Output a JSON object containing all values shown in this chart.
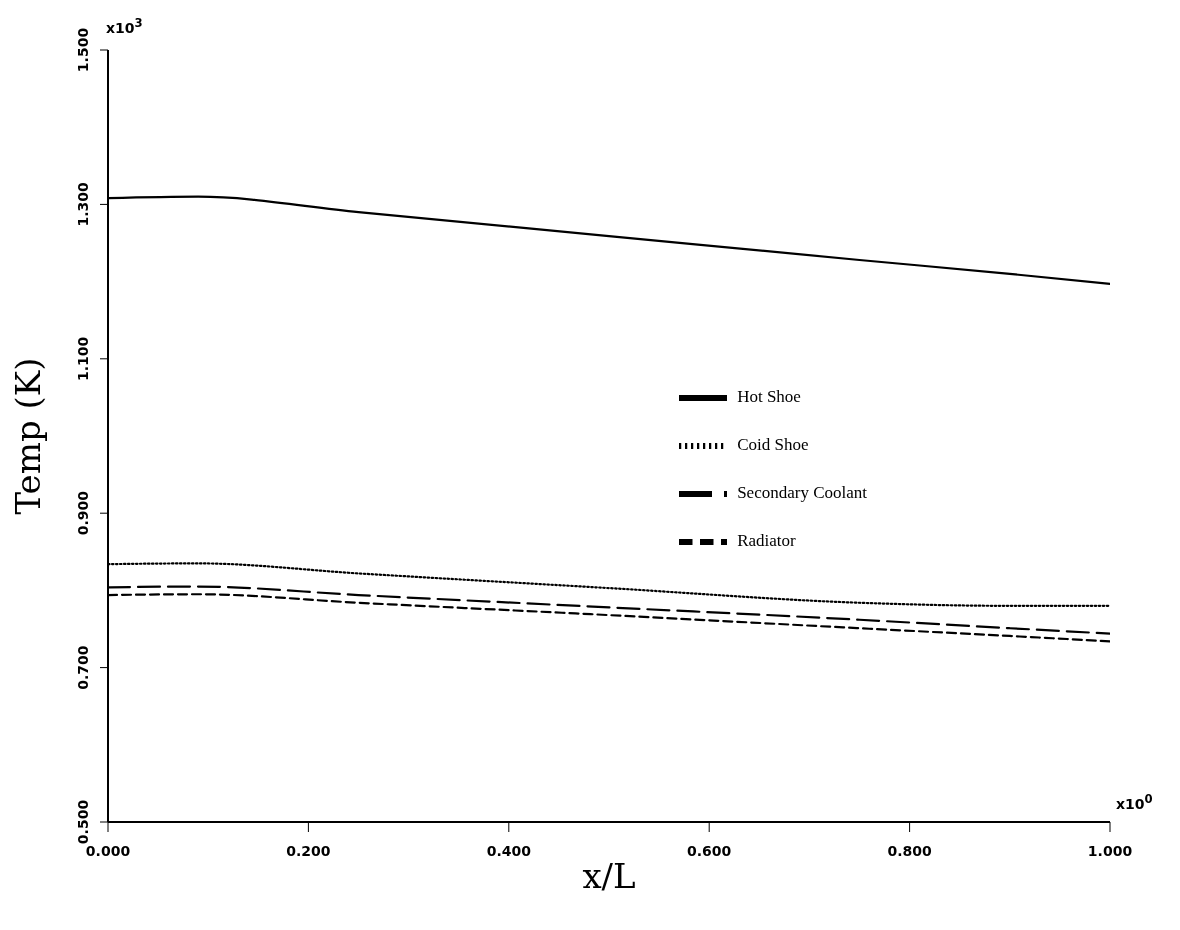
{
  "chart_data": {
    "type": "line",
    "xlabel": "x/L",
    "ylabel": "Temp (K)",
    "x": [
      0,
      0.09,
      0.25,
      0.5,
      0.75,
      0.9,
      1.0
    ],
    "series": [
      {
        "name": "Hot Shoe",
        "color": "#000000",
        "line_style": "solid",
        "values": [
          1.308,
          1.31,
          1.29,
          1.259,
          1.228,
          1.21,
          1.197
        ]
      },
      {
        "name": "Coid Shoe",
        "color": "#000000",
        "line_style": "dotted",
        "values": [
          0.834,
          0.835,
          0.822,
          0.803,
          0.784,
          0.78,
          0.78
        ]
      },
      {
        "name": "Secondary Coolant",
        "color": "#000000",
        "line_style": "longdash",
        "values": [
          0.804,
          0.805,
          0.794,
          0.778,
          0.762,
          0.751,
          0.744
        ]
      },
      {
        "name": "Radiator",
        "color": "#000000",
        "line_style": "dashed",
        "values": [
          0.794,
          0.795,
          0.784,
          0.768,
          0.751,
          0.741,
          0.734
        ]
      }
    ],
    "xlim": [
      0,
      1
    ],
    "xticks": [
      {
        "value": 0,
        "label": "0.000"
      },
      {
        "value": 0.2,
        "label": "0.200"
      },
      {
        "value": 0.4,
        "label": "0.400"
      },
      {
        "value": 0.6,
        "label": "0.600"
      },
      {
        "value": 0.8,
        "label": "0.800"
      },
      {
        "value": 1,
        "label": "1.000"
      }
    ],
    "ylim": [
      0.5,
      1.5
    ],
    "yticks": [
      {
        "value": 0.5,
        "label": "0.500"
      },
      {
        "value": 0.7,
        "label": "0.700"
      },
      {
        "value": 0.9,
        "label": "0.900"
      },
      {
        "value": 1.1,
        "label": "1.100"
      },
      {
        "value": 1.3,
        "label": "1.300"
      },
      {
        "value": 1.5,
        "label": "1.500"
      }
    ],
    "annotations": [
      "x10$^{3}$",
      "x10$^{0}$"
    ],
    "legend": "right",
    "grid": false,
    "marker": "none"
  }
}
